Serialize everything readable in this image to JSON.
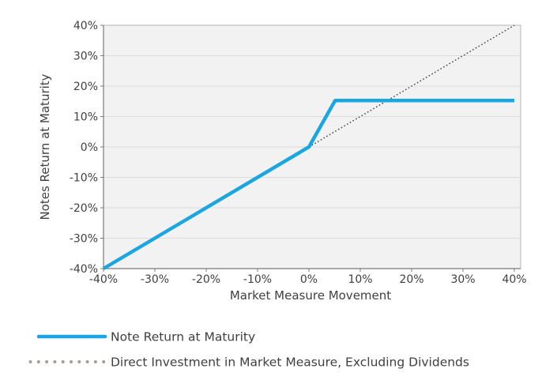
{
  "page": {
    "background": "#ffffff"
  },
  "chart_data": {
    "type": "line",
    "title": "",
    "xlabel": "Market Measure Movement",
    "ylabel": "Notes Return at Maturity",
    "xlim": [
      -40,
      41.2
    ],
    "ylim": [
      -40,
      40
    ],
    "x_tick_values": [
      -40,
      -30,
      -20,
      -10,
      0,
      10,
      20,
      30,
      40
    ],
    "x_tick_labels": [
      "-40%",
      "-30%",
      "-20%",
      "-10%",
      "0%",
      "10%",
      "20%",
      "30%",
      "40%"
    ],
    "y_tick_values": [
      40,
      30,
      20,
      10,
      0,
      -10,
      -20,
      -30,
      -40
    ],
    "y_tick_labels": [
      "40%",
      "30%",
      "20%",
      "10%",
      "0%",
      "-10%",
      "-20%",
      "-30%",
      "-40%"
    ],
    "grid": "horizontal-only",
    "plot_background": "#f2f2f2",
    "grid_color": "#dcdcdc",
    "panel_border_color": "#b5b5b5",
    "axis_line_color": "#7a7a7a",
    "text_color": "#404040",
    "legend_position": "below-chart-left",
    "series": [
      {
        "name": "Note Return at Maturity",
        "line_style": "solid",
        "color": "#1CA6E0",
        "stroke_width": 4.5,
        "points": [
          [
            -40,
            -40
          ],
          [
            0,
            0
          ],
          [
            5.1,
            15.25
          ],
          [
            40,
            15.25
          ]
        ]
      },
      {
        "name": "Direct Investment in Market Measure, Excluding Dividends",
        "line_style": "dotted",
        "color": "#3D3D3D",
        "legend_marker_color": "#A69D90",
        "stroke_width": 1.4,
        "points": [
          [
            0,
            0
          ],
          [
            40,
            40
          ]
        ]
      }
    ]
  }
}
